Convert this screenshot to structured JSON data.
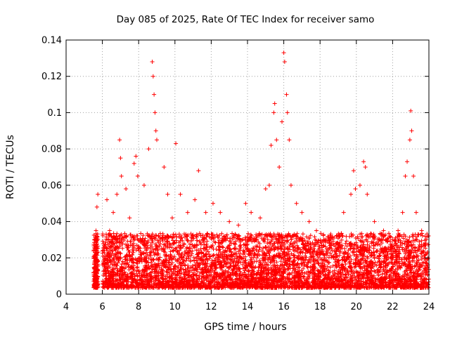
{
  "chart_data": {
    "type": "scatter",
    "title": "Day 085 of 2025, Rate Of TEC Index for receiver samo",
    "xlabel": "GPS time / hours",
    "ylabel": "ROTI / TECUs",
    "xlim": [
      4,
      24
    ],
    "ylim": [
      0,
      0.14
    ],
    "xticks": [
      "4",
      "6",
      "8",
      "10",
      "12",
      "14",
      "16",
      "18",
      "20",
      "22",
      "24"
    ],
    "yticks": [
      "0",
      "0.02",
      "0.04",
      "0.06",
      "0.08",
      "0.1",
      "0.12",
      "0.14"
    ],
    "grid": true,
    "marker": "plus",
    "color": "#ff0000",
    "series": [
      {
        "values": [
          [
            5.55,
            0.012
          ],
          [
            5.6,
            0.025
          ],
          [
            5.65,
            0.035
          ],
          [
            5.7,
            0.048
          ],
          [
            5.75,
            0.055
          ],
          [
            5.62,
            0.008
          ],
          [
            5.68,
            0.018
          ],
          [
            6.1,
            0.02
          ],
          [
            6.25,
            0.052
          ],
          [
            6.4,
            0.035
          ],
          [
            6.6,
            0.045
          ],
          [
            6.8,
            0.055
          ],
          [
            6.95,
            0.085
          ],
          [
            7.0,
            0.075
          ],
          [
            7.05,
            0.065
          ],
          [
            7.3,
            0.058
          ],
          [
            7.5,
            0.042
          ],
          [
            7.75,
            0.072
          ],
          [
            7.85,
            0.076
          ],
          [
            7.95,
            0.065
          ],
          [
            8.3,
            0.06
          ],
          [
            8.55,
            0.08
          ],
          [
            8.75,
            0.128
          ],
          [
            8.8,
            0.12
          ],
          [
            8.85,
            0.11
          ],
          [
            8.9,
            0.1
          ],
          [
            8.95,
            0.09
          ],
          [
            9.0,
            0.085
          ],
          [
            9.4,
            0.07
          ],
          [
            9.6,
            0.055
          ],
          [
            9.85,
            0.042
          ],
          [
            10.05,
            0.083
          ],
          [
            10.3,
            0.055
          ],
          [
            10.7,
            0.045
          ],
          [
            11.1,
            0.052
          ],
          [
            11.3,
            0.068
          ],
          [
            11.7,
            0.045
          ],
          [
            12.1,
            0.05
          ],
          [
            12.5,
            0.045
          ],
          [
            13.0,
            0.04
          ],
          [
            13.5,
            0.038
          ],
          [
            13.9,
            0.05
          ],
          [
            14.2,
            0.045
          ],
          [
            14.7,
            0.042
          ],
          [
            15.0,
            0.058
          ],
          [
            15.2,
            0.06
          ],
          [
            15.3,
            0.082
          ],
          [
            15.45,
            0.1
          ],
          [
            15.5,
            0.105
          ],
          [
            15.6,
            0.085
          ],
          [
            15.75,
            0.07
          ],
          [
            15.9,
            0.095
          ],
          [
            16.0,
            0.133
          ],
          [
            16.05,
            0.128
          ],
          [
            16.15,
            0.11
          ],
          [
            16.2,
            0.1
          ],
          [
            16.3,
            0.085
          ],
          [
            16.4,
            0.06
          ],
          [
            16.7,
            0.05
          ],
          [
            17.0,
            0.045
          ],
          [
            17.4,
            0.04
          ],
          [
            17.8,
            0.035
          ],
          [
            18.2,
            0.03
          ],
          [
            18.5,
            0.028
          ],
          [
            18.9,
            0.032
          ],
          [
            19.3,
            0.045
          ],
          [
            19.7,
            0.055
          ],
          [
            19.85,
            0.068
          ],
          [
            19.95,
            0.058
          ],
          [
            20.2,
            0.06
          ],
          [
            20.4,
            0.073
          ],
          [
            20.5,
            0.07
          ],
          [
            20.6,
            0.055
          ],
          [
            21.0,
            0.04
          ],
          [
            21.5,
            0.035
          ],
          [
            22.0,
            0.03
          ],
          [
            22.3,
            0.035
          ],
          [
            22.55,
            0.045
          ],
          [
            22.7,
            0.065
          ],
          [
            22.8,
            0.073
          ],
          [
            22.95,
            0.085
          ],
          [
            23.0,
            0.101
          ],
          [
            23.05,
            0.09
          ],
          [
            23.15,
            0.065
          ],
          [
            23.3,
            0.045
          ],
          [
            23.6,
            0.035
          ],
          [
            23.85,
            0.03
          ],
          [
            23.95,
            0.02
          ]
        ]
      }
    ]
  }
}
